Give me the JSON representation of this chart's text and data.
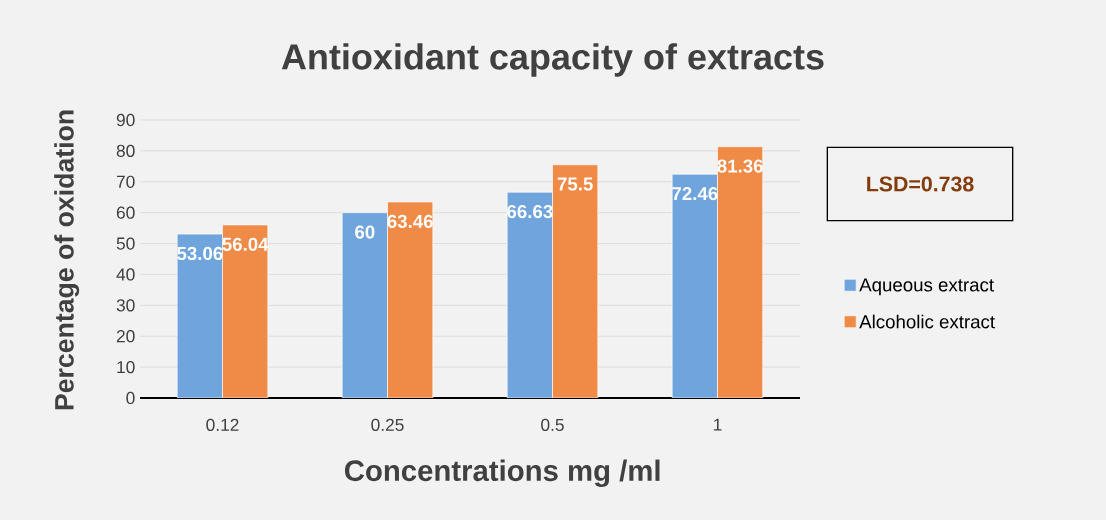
{
  "chart_data": {
    "type": "bar",
    "title": "Antioxidant capacity of extracts",
    "xlabel": "Concentrations mg /ml",
    "ylabel": "Percentage of oxidation",
    "categories": [
      "0.12",
      "0.25",
      "0.5",
      "1"
    ],
    "series": [
      {
        "name": "Aqueous extract",
        "color": "#6fa5dc",
        "values": [
          53.06,
          60,
          66.63,
          72.46
        ]
      },
      {
        "name": "Alcoholic extract",
        "color": "#ef8a47",
        "values": [
          56.04,
          63.46,
          75.5,
          81.36
        ]
      }
    ],
    "ylim": [
      0,
      90
    ],
    "yticks": [
      0,
      10,
      20,
      30,
      40,
      50,
      60,
      70,
      80,
      90
    ],
    "grid": "y",
    "legend": "right",
    "data_labels": true,
    "annotations": [
      "LSD=0.738"
    ]
  }
}
